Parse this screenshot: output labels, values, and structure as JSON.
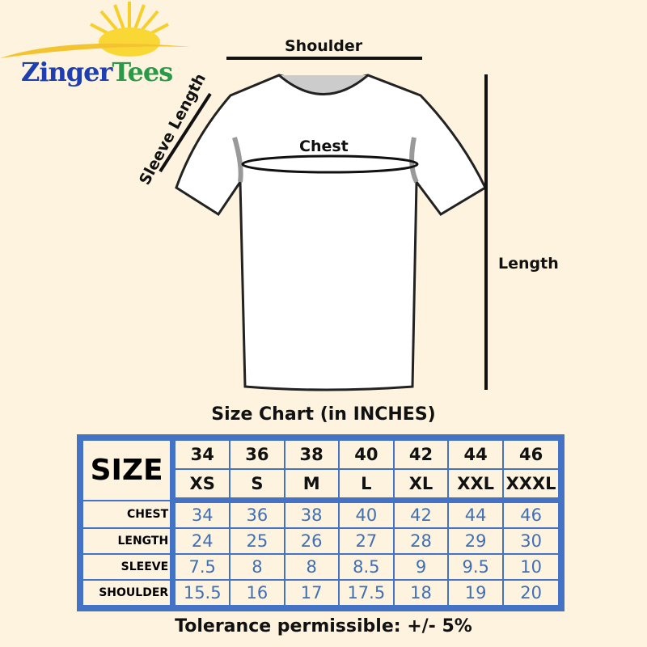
{
  "logo": {
    "part1": "Zinger",
    "part2": "Tees"
  },
  "diagram": {
    "shoulder": "Shoulder",
    "sleeve_length": "Sleeve Length",
    "chest": "Chest",
    "length": "Length"
  },
  "title": "Size Chart (in INCHES)",
  "table": {
    "size_label": "SIZE",
    "sizes_numeric": [
      "34",
      "36",
      "38",
      "40",
      "42",
      "44",
      "46"
    ],
    "sizes_letter": [
      "XS",
      "S",
      "M",
      "L",
      "XL",
      "XXL",
      "XXXL"
    ],
    "rows": [
      {
        "label": "CHEST",
        "values": [
          "34",
          "36",
          "38",
          "40",
          "42",
          "44",
          "46"
        ]
      },
      {
        "label": "LENGTH",
        "values": [
          "24",
          "25",
          "26",
          "27",
          "28",
          "29",
          "30"
        ]
      },
      {
        "label": "SLEEVE",
        "values": [
          "7.5",
          "8",
          "8",
          "8.5",
          "9",
          "9.5",
          "10"
        ]
      },
      {
        "label": "SHOULDER",
        "values": [
          "15.5",
          "16",
          "17",
          "17.5",
          "18",
          "19",
          "20"
        ]
      }
    ]
  },
  "footer": "Tolerance permissible: +/- 5%",
  "colors": {
    "background": "#fdf3df",
    "table_border": "#4472c4",
    "values": "#3f6fb5"
  }
}
